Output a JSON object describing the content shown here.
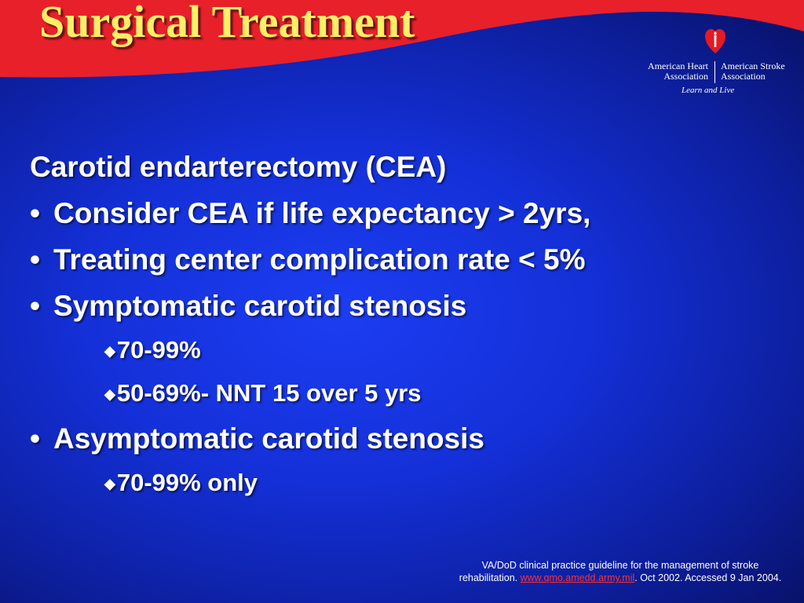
{
  "title": "Surgical Treatment",
  "logo": {
    "aha_line1": "American Heart",
    "aha_line2": "Association",
    "asa_line1": "American Stroke",
    "asa_line2": "Association",
    "tagline": "Learn and Live",
    "heart_icon": "heart-torch-icon",
    "brand_red": "#e31b23"
  },
  "content": {
    "heading": "Carotid endarterectomy (CEA)",
    "bullet_1": "Consider CEA if life expectancy > 2yrs,",
    "bullet_2": "Treating center complication rate < 5%",
    "bullet_3": "Symptomatic carotid stenosis",
    "bullet_3_sub_1": "70-99%",
    "bullet_3_sub_2": "50-69%- NNT 15 over 5 yrs",
    "bullet_4": "Asymptomatic carotid stenosis",
    "bullet_4_sub_1": "70-99% only",
    "bullet_char": "•",
    "sub_bullet_char": "◆"
  },
  "citation": {
    "text_1": "VA/DoD clinical practice guideline for the management of stroke rehabilitation.",
    "link": "www.qmo.amedd.army.mil",
    "text_2": ". Oct 2002. Accessed 9 Jan 2004."
  },
  "colors": {
    "title": "#ffee66",
    "band": "#e8202a",
    "background": "#1430d8"
  }
}
